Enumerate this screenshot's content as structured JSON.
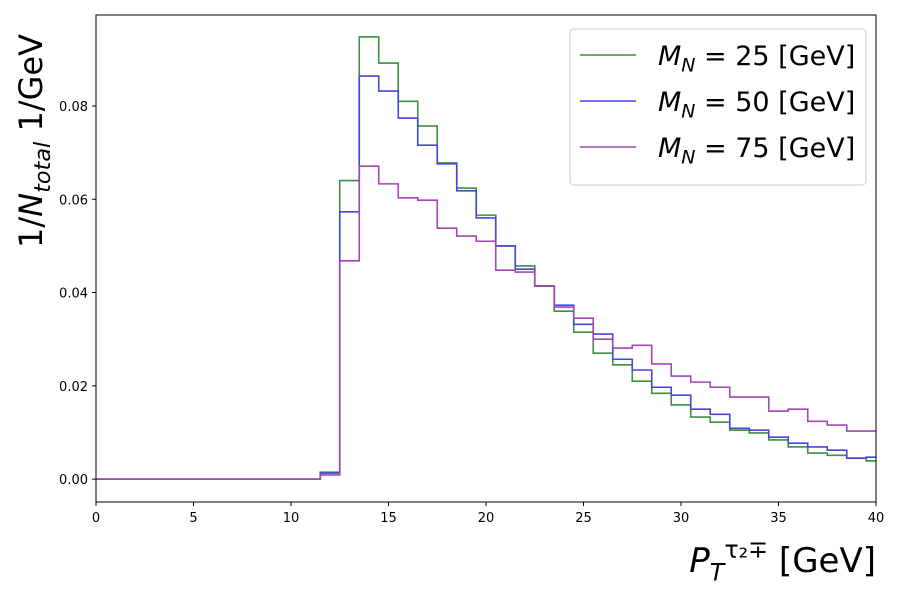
{
  "chart_data": {
    "type": "step",
    "x_label": "P_T^{τ₂∓} [GeV]",
    "y_label": "1/N_{total} 1/GeV",
    "x": [
      0,
      1,
      2,
      3,
      4,
      5,
      6,
      7,
      8,
      9,
      10,
      11,
      12,
      13,
      14,
      15,
      16,
      17,
      18,
      19,
      20,
      21,
      22,
      23,
      24,
      25,
      26,
      27,
      28,
      29,
      30,
      31,
      32,
      33,
      34,
      35,
      36,
      37,
      38,
      39,
      40
    ],
    "series": [
      {
        "name": "M_N = 25 [GeV]",
        "color": "#3f8f3f",
        "values": [
          0,
          0,
          0,
          0,
          0,
          0,
          0,
          0,
          0,
          0,
          0,
          0,
          0.0015,
          0.064,
          0.0948,
          0.0892,
          0.081,
          0.0757,
          0.0678,
          0.0624,
          0.0566,
          0.05,
          0.0457,
          0.0414,
          0.036,
          0.0315,
          0.027,
          0.0245,
          0.021,
          0.0184,
          0.0159,
          0.0133,
          0.0122,
          0.0105,
          0.0099,
          0.0084,
          0.0069,
          0.0056,
          0.0051,
          0.0045,
          0.0039
        ]
      },
      {
        "name": "M_N = 50 [GeV]",
        "color": "#4646d8",
        "values": [
          0,
          0,
          0,
          0,
          0,
          0,
          0,
          0,
          0,
          0,
          0,
          0,
          0.0013,
          0.0573,
          0.0864,
          0.0832,
          0.0774,
          0.0716,
          0.0676,
          0.0618,
          0.056,
          0.05,
          0.045,
          0.0414,
          0.0373,
          0.0332,
          0.0311,
          0.0257,
          0.0234,
          0.0197,
          0.018,
          0.015,
          0.0139,
          0.0109,
          0.0105,
          0.009,
          0.0077,
          0.0069,
          0.0062,
          0.0045,
          0.0047
        ]
      },
      {
        "name": "M_N = 75 [GeV]",
        "color": "#a346b5",
        "values": [
          0,
          0,
          0,
          0,
          0,
          0,
          0,
          0,
          0,
          0,
          0,
          0,
          0.0009,
          0.0468,
          0.0671,
          0.0633,
          0.0603,
          0.0598,
          0.0538,
          0.0521,
          0.051,
          0.0448,
          0.0444,
          0.0414,
          0.0369,
          0.0345,
          0.03,
          0.0281,
          0.0287,
          0.0247,
          0.0221,
          0.0208,
          0.0197,
          0.0176,
          0.0176,
          0.0146,
          0.015,
          0.0124,
          0.0116,
          0.0103,
          0.0103
        ]
      }
    ],
    "xlim": [
      0,
      40
    ],
    "ylim": [
      -0.0049,
      0.0995
    ],
    "xticks": [
      0,
      5,
      10,
      15,
      20,
      25,
      30,
      35,
      40
    ],
    "yticks": [
      {
        "value": 0,
        "label": "0.00"
      },
      {
        "value": 0.02,
        "label": "0.02"
      },
      {
        "value": 0.04,
        "label": "0.04"
      },
      {
        "value": 0.06,
        "label": "0.06"
      },
      {
        "value": 0.08,
        "label": "0.08"
      }
    ],
    "legend": "upper right"
  }
}
